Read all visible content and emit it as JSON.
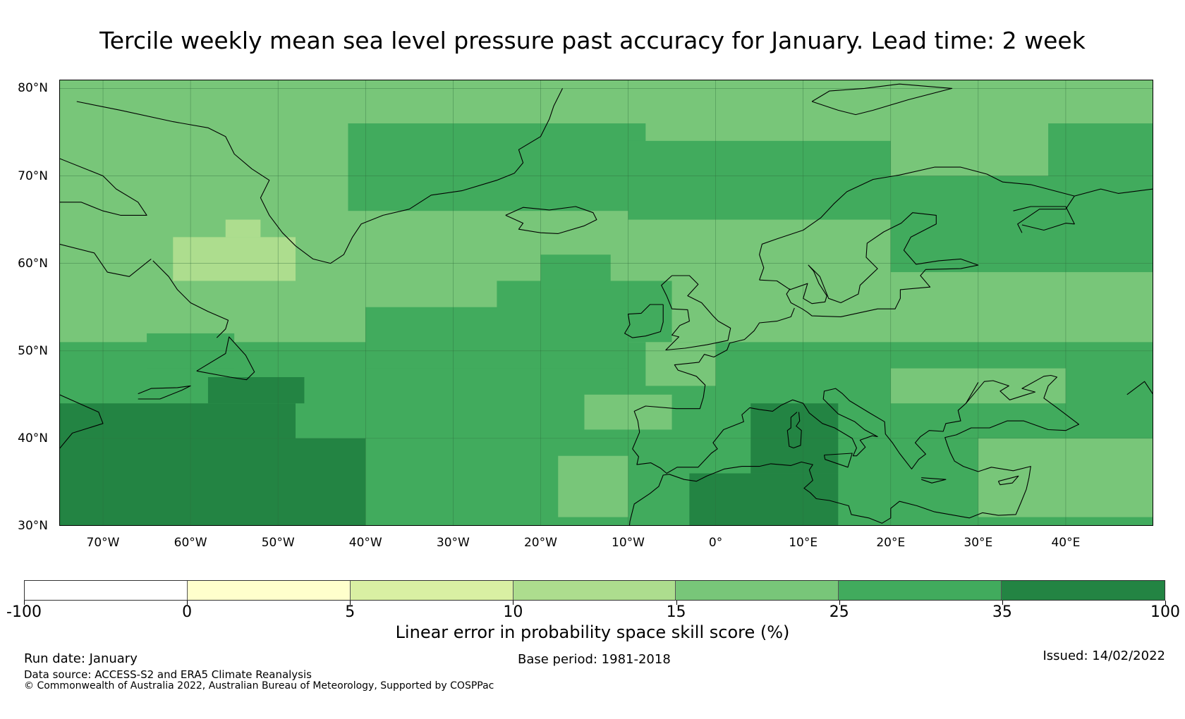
{
  "title": "Tercile weekly mean sea level pressure past accuracy for January. Lead time: 2 week",
  "map": {
    "region": "North Atlantic and Europe",
    "lon_range": [
      -75,
      50
    ],
    "lat_range": [
      30,
      81
    ],
    "lat_labels": [
      "80°N",
      "70°N",
      "60°N",
      "50°N",
      "40°N",
      "30°N"
    ],
    "lat_values": [
      80,
      70,
      60,
      50,
      40,
      30
    ],
    "lon_labels": [
      "70°W",
      "60°W",
      "50°W",
      "40°W",
      "30°W",
      "20°W",
      "10°W",
      "0°",
      "10°E",
      "20°E",
      "30°E",
      "40°E"
    ],
    "lon_values": [
      -70,
      -60,
      -50,
      -40,
      -30,
      -20,
      -10,
      0,
      10,
      20,
      30,
      40
    ],
    "skill_regions": [
      {
        "category": "15-25",
        "color": "#78c679",
        "lon": [
          -75,
          50
        ],
        "lat": [
          30,
          81
        ]
      },
      {
        "category": "25-35",
        "color": "#41ab5d",
        "lon": [
          -42,
          -8
        ],
        "lat": [
          66,
          76
        ]
      },
      {
        "category": "25-35",
        "color": "#41ab5d",
        "lon": [
          -10,
          20
        ],
        "lat": [
          65,
          74
        ]
      },
      {
        "category": "25-35",
        "color": "#41ab5d",
        "lon": [
          20,
          50
        ],
        "lat": [
          59,
          70
        ]
      },
      {
        "category": "25-35",
        "color": "#41ab5d",
        "lon": [
          -75,
          50
        ],
        "lat": [
          30,
          51
        ]
      },
      {
        "category": "25-35",
        "color": "#41ab5d",
        "lon": [
          -40,
          -10
        ],
        "lat": [
          48,
          55
        ]
      },
      {
        "category": "25-35",
        "color": "#41ab5d",
        "lon": [
          -25,
          -5
        ],
        "lat": [
          51,
          58
        ]
      },
      {
        "category": "25-35",
        "color": "#41ab5d",
        "lon": [
          -20,
          -12
        ],
        "lat": [
          57,
          61
        ]
      },
      {
        "category": "25-35",
        "color": "#41ab5d",
        "lon": [
          -65,
          -55
        ],
        "lat": [
          48,
          52
        ]
      },
      {
        "category": "25-35",
        "color": "#41ab5d",
        "lon": [
          38,
          50
        ],
        "lat": [
          70,
          76
        ]
      },
      {
        "category": "35-100",
        "color": "#238443",
        "lon": [
          -75,
          -40
        ],
        "lat": [
          30,
          40
        ]
      },
      {
        "category": "35-100",
        "color": "#238443",
        "lon": [
          -75,
          -48
        ],
        "lat": [
          40,
          44
        ]
      },
      {
        "category": "35-100",
        "color": "#238443",
        "lon": [
          -58,
          -47
        ],
        "lat": [
          44,
          47
        ]
      },
      {
        "category": "35-100",
        "color": "#238443",
        "lon": [
          4,
          14
        ],
        "lat": [
          36,
          44
        ]
      },
      {
        "category": "35-100",
        "color": "#238443",
        "lon": [
          -3,
          14
        ],
        "lat": [
          30,
          36
        ]
      },
      {
        "category": "15-25",
        "color": "#78c679",
        "lon": [
          -8,
          0
        ],
        "lat": [
          46,
          51
        ]
      },
      {
        "category": "15-25",
        "color": "#78c679",
        "lon": [
          -15,
          -5
        ],
        "lat": [
          41,
          45
        ]
      },
      {
        "category": "15-25",
        "color": "#78c679",
        "lon": [
          -18,
          -10
        ],
        "lat": [
          31,
          38
        ]
      },
      {
        "category": "15-25",
        "color": "#78c679",
        "lon": [
          20,
          40
        ],
        "lat": [
          44,
          48
        ]
      },
      {
        "category": "15-25",
        "color": "#78c679",
        "lon": [
          30,
          50
        ],
        "lat": [
          31,
          40
        ]
      },
      {
        "category": "10-15",
        "color": "#addd8e",
        "lon": [
          -62,
          -48
        ],
        "lat": [
          58,
          63
        ]
      },
      {
        "category": "10-15",
        "color": "#addd8e",
        "lon": [
          -56,
          -52
        ],
        "lat": [
          63,
          65
        ]
      }
    ]
  },
  "colorbar": {
    "boundaries": [
      "-100",
      "0",
      "5",
      "10",
      "15",
      "25",
      "35",
      "100"
    ],
    "colors": [
      "#ffffff",
      "#ffffcc",
      "#d9f0a3",
      "#addd8e",
      "#78c679",
      "#41ab5d",
      "#238443"
    ],
    "label": "Linear error in probability space skill score (%)"
  },
  "footer": {
    "run_date": "Run date: January",
    "data_source": "Data source: ACCESS-S2 and ERA5 Climate Reanalysis",
    "copyright": "© Commonwealth of Australia 2022, Australian Bureau of Meteorology, Supported by COSPPac",
    "base_period": "Base period: 1981-2018",
    "issued": "Issued: 14/02/2022"
  }
}
